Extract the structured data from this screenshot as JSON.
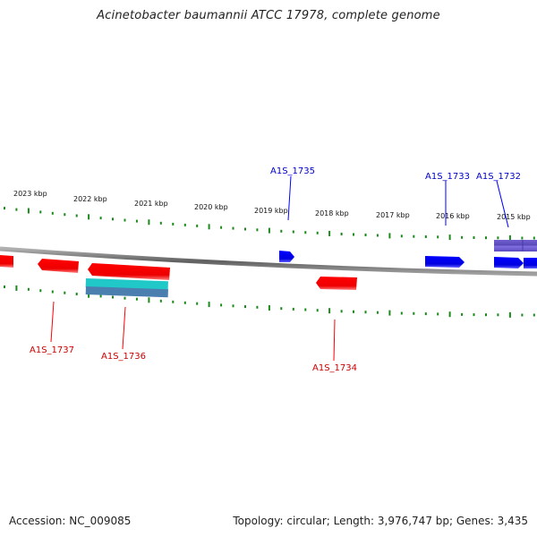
{
  "title": "Acinetobacter baumannii ATCC 17978, complete genome",
  "footer": {
    "accession": "Accession: NC_009085",
    "summary": "Topology: circular; Length: 3,976,747 bp; Genes: 3,435"
  },
  "colors": {
    "forward_gene": "#0000ff",
    "reverse_gene": "#ff0000",
    "rna_gene": "#20c0c0",
    "forward_other": "#6a5acd",
    "backbone": "#808080",
    "ticks": "#1a8a1a",
    "gene_label_forward": "#0000cc",
    "gene_label_reverse": "#cc0000"
  },
  "scale_labels": [
    "2023 kbp",
    "2022 kbp",
    "2021 kbp",
    "2020 kbp",
    "2019 kbp",
    "2018 kbp",
    "2017 kbp",
    "2016 kbp",
    "2015 kbp"
  ],
  "forward_genes": [
    {
      "label": "A1S_1735"
    },
    {
      "label": "A1S_1733"
    },
    {
      "label": "A1S_1732"
    }
  ],
  "reverse_genes": [
    {
      "label": "A1S_1737"
    },
    {
      "label": "A1S_1736"
    },
    {
      "label": "A1S_1734"
    }
  ]
}
